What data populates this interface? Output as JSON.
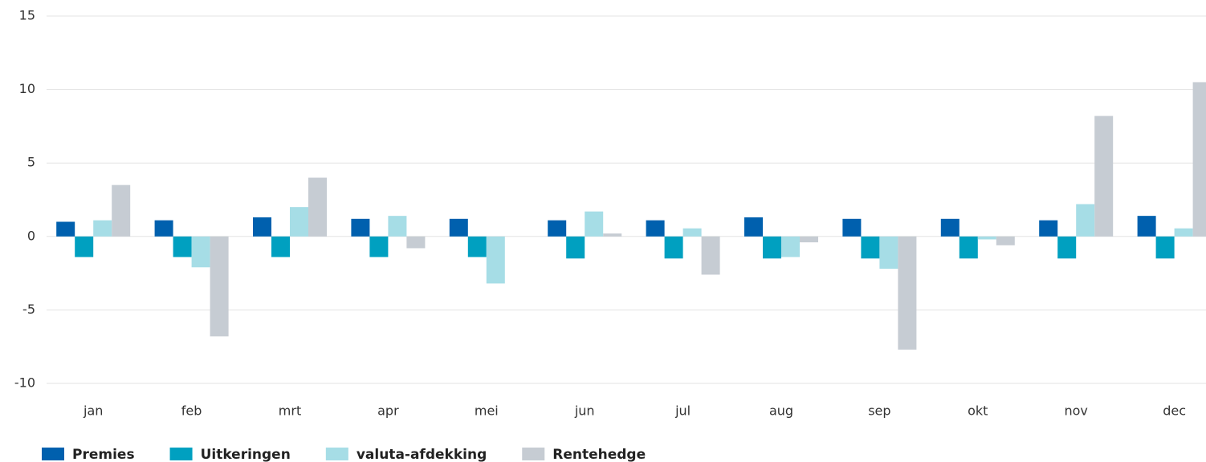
{
  "chart_data": {
    "type": "bar",
    "categories": [
      "jan",
      "feb",
      "mrt",
      "apr",
      "mei",
      "jun",
      "jul",
      "aug",
      "sep",
      "okt",
      "nov",
      "dec"
    ],
    "series": [
      {
        "name": "Premies",
        "color": "#0060ae",
        "values": [
          1.0,
          1.1,
          1.3,
          1.2,
          1.2,
          1.1,
          1.1,
          1.3,
          1.2,
          1.2,
          1.1,
          1.4
        ]
      },
      {
        "name": "Uitkeringen",
        "color": "#00a0c0",
        "values": [
          -1.4,
          -1.4,
          -1.4,
          -1.4,
          -1.4,
          -1.5,
          -1.5,
          -1.5,
          -1.5,
          -1.5,
          -1.5,
          -1.5
        ]
      },
      {
        "name": "valuta-afdekking",
        "color": "#a6dde6",
        "values": [
          1.1,
          -2.1,
          2.0,
          1.4,
          -3.2,
          1.7,
          0.55,
          -1.4,
          -2.2,
          -0.2,
          2.2,
          0.55
        ]
      },
      {
        "name": "Rentehedge",
        "color": "#c6ccd3",
        "values": [
          3.5,
          -6.8,
          4.0,
          -0.8,
          0,
          0.2,
          -2.6,
          -0.4,
          -7.7,
          -0.6,
          8.2,
          10.5
        ]
      }
    ],
    "ylim": [
      -10,
      15
    ],
    "yticks": [
      -10,
      -5,
      0,
      5,
      10,
      15
    ],
    "grid": true,
    "legend": "bottom-left"
  }
}
